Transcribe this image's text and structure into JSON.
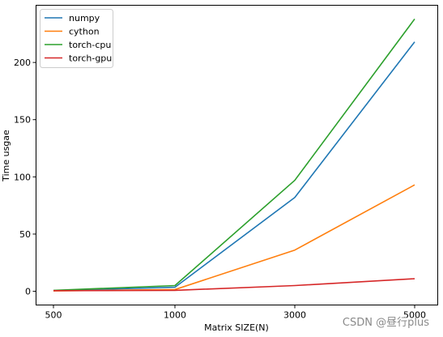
{
  "chart_data": {
    "type": "line",
    "x": [
      500,
      1000,
      3000,
      5000
    ],
    "x_tick_labels": [
      "500",
      "1000",
      "3000",
      "5000"
    ],
    "series": [
      {
        "name": "numpy",
        "color": "#1f77b4",
        "values": [
          0.5,
          3.5,
          82,
          218
        ]
      },
      {
        "name": "cython",
        "color": "#ff7f0e",
        "values": [
          0.3,
          1.5,
          36,
          93
        ]
      },
      {
        "name": "torch-cpu",
        "color": "#2ca02c",
        "values": [
          0.8,
          5,
          97,
          238
        ]
      },
      {
        "name": "torch-gpu",
        "color": "#d62728",
        "values": [
          0.5,
          0.8,
          5,
          11
        ]
      }
    ],
    "xlabel": "Matrix SIZE(N)",
    "ylabel": "Time usgae",
    "y_ticks": [
      0,
      50,
      100,
      150,
      200
    ],
    "ylim": [
      -12,
      250
    ],
    "legend_position": "upper-left",
    "grid": false
  },
  "watermark": "CSDN @昼行plus"
}
